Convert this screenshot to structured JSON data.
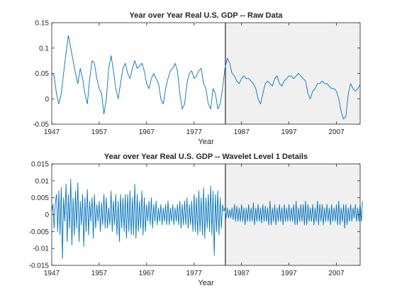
{
  "chart_data": [
    {
      "type": "line",
      "title": "Year over Year Real U.S. GDP -- Raw Data",
      "xlabel": "Year",
      "ylabel": "",
      "xlim": [
        1947,
        2012
      ],
      "ylim": [
        -0.05,
        0.15
      ],
      "xticks": [
        "1947",
        "1957",
        "1967",
        "1977",
        "1987",
        "1997",
        "2007"
      ],
      "yticks": [
        "-0.05",
        "0",
        "0.05",
        "0.1",
        "0.15"
      ],
      "shaded_region": [
        1983.6,
        2012
      ],
      "shade_color": "#f0f0f0",
      "line_color": "#0072bd",
      "series": [
        {
          "x": [
            1947,
            1947.5,
            1948,
            1948.5,
            1949,
            1949.5,
            1950,
            1950.5,
            1951,
            1951.5,
            1952,
            1952.5,
            1953,
            1953.5,
            1954,
            1954.5,
            1955,
            1955.5,
            1956,
            1956.5,
            1957,
            1957.5,
            1958,
            1958.5,
            1959,
            1959.5,
            1960,
            1960.5,
            1961,
            1961.5,
            1962,
            1962.5,
            1963,
            1963.5,
            1964,
            1964.5,
            1965,
            1965.5,
            1966,
            1966.5,
            1967,
            1967.5,
            1968,
            1968.5,
            1969,
            1969.5,
            1970,
            1970.5,
            1971,
            1971.5,
            1972,
            1972.5,
            1973,
            1973.5,
            1974,
            1974.5,
            1975,
            1975.5,
            1976,
            1976.5,
            1977,
            1977.5,
            1978,
            1978.5,
            1979,
            1979.5,
            1980,
            1980.5,
            1981,
            1981.5,
            1982,
            1982.5,
            1983,
            1983.5,
            1984,
            1984.5,
            1985,
            1985.5,
            1986,
            1986.5,
            1987,
            1987.5,
            1988,
            1988.5,
            1989,
            1989.5,
            1990,
            1990.5,
            1991,
            1991.5,
            1992,
            1992.5,
            1993,
            1993.5,
            1994,
            1994.5,
            1995,
            1995.5,
            1996,
            1996.5,
            1997,
            1997.5,
            1998,
            1998.5,
            1999,
            1999.5,
            2000,
            2000.5,
            2001,
            2001.5,
            2002,
            2002.5,
            2003,
            2003.5,
            2004,
            2004.5,
            2005,
            2005.5,
            2006,
            2006.5,
            2007,
            2007.5,
            2008,
            2008.5,
            2009,
            2009.5,
            2010,
            2010.5,
            2011,
            2011.5,
            2012
          ],
          "y": [
            0.05,
            0.045,
            0.01,
            -0.01,
            0.01,
            0.05,
            0.09,
            0.125,
            0.1,
            0.075,
            0.05,
            0.03,
            0.06,
            0.04,
            0.01,
            -0.01,
            0.04,
            0.075,
            0.07,
            0.04,
            0.02,
            0.01,
            -0.03,
            0.0,
            0.06,
            0.085,
            0.055,
            0.02,
            0.0,
            0.03,
            0.06,
            0.07,
            0.05,
            0.04,
            0.06,
            0.075,
            0.06,
            0.065,
            0.07,
            0.055,
            0.03,
            0.02,
            0.04,
            0.05,
            0.04,
            0.03,
            0.0,
            -0.01,
            0.02,
            0.04,
            0.055,
            0.06,
            0.07,
            0.055,
            0.01,
            -0.02,
            -0.01,
            0.03,
            0.05,
            0.055,
            0.04,
            0.045,
            0.055,
            0.06,
            0.03,
            0.02,
            -0.01,
            -0.02,
            0.02,
            0.01,
            -0.02,
            -0.01,
            0.02,
            0.06,
            0.08,
            0.07,
            0.05,
            0.045,
            0.035,
            0.03,
            0.04,
            0.045,
            0.04,
            0.04,
            0.035,
            0.03,
            0.02,
            0.0,
            -0.01,
            0.01,
            0.03,
            0.035,
            0.03,
            0.025,
            0.04,
            0.045,
            0.03,
            0.025,
            0.035,
            0.04,
            0.045,
            0.045,
            0.04,
            0.045,
            0.05,
            0.045,
            0.04,
            0.035,
            0.01,
            0.0,
            0.015,
            0.02,
            0.03,
            0.03,
            0.035,
            0.03,
            0.03,
            0.025,
            0.02,
            0.02,
            0.015,
            0.0,
            -0.025,
            -0.04,
            -0.035,
            0.01,
            0.03,
            0.02,
            0.015,
            0.02,
            0.028
          ]
        }
      ]
    },
    {
      "type": "line",
      "title": "Year over Year Real U.S. GDP -- Wavelet Level 1 Details",
      "xlabel": "Year",
      "ylabel": "",
      "xlim": [
        1947,
        2012
      ],
      "ylim": [
        -0.015,
        0.015
      ],
      "xticks": [
        "1947",
        "1957",
        "1967",
        "1977",
        "1987",
        "1997",
        "2007"
      ],
      "yticks": [
        "-0.015",
        "-0.01",
        "-0.005",
        "0",
        "0.005",
        "0.01",
        "0.015"
      ],
      "shaded_region": [
        1983.6,
        2012
      ],
      "shade_color": "#f0f0f0",
      "line_color": "#0072bd",
      "series": [
        {
          "x_start": 1947,
          "x_step": 0.25,
          "y": [
            0.001,
            0.003,
            -0.004,
            0.0035,
            0.006,
            -0.005,
            0.007,
            -0.006,
            0.008,
            -0.013,
            0.005,
            -0.002,
            0.009,
            -0.008,
            0.006,
            -0.004,
            0.0105,
            -0.009,
            0.005,
            -0.006,
            0.007,
            -0.004,
            0.0095,
            -0.008,
            0.004,
            -0.003,
            0.006,
            -0.0095,
            0.005,
            -0.005,
            0.0075,
            -0.006,
            0.004,
            -0.002,
            0.005,
            -0.007,
            0.006,
            -0.004,
            0.003,
            -0.002,
            0.004,
            -0.005,
            0.0035,
            -0.003,
            0.006,
            -0.004,
            0.005,
            -0.004,
            0.002,
            -0.003,
            0.007,
            -0.005,
            0.004,
            -0.003,
            0.006,
            -0.006,
            0.004,
            -0.008,
            0.006,
            -0.004,
            0.005,
            -0.005,
            0.006,
            -0.007,
            0.006,
            -0.005,
            0.007,
            -0.006,
            0.005,
            -0.006,
            0.009,
            -0.007,
            0.006,
            -0.005,
            0.004,
            -0.004,
            0.007,
            -0.006,
            0.005,
            -0.005,
            0.003,
            -0.002,
            0.004,
            -0.003,
            0.005,
            -0.004,
            0.003,
            -0.002,
            0.004,
            -0.003,
            0.002,
            -0.002,
            0.003,
            -0.003,
            0.002,
            -0.002,
            0.003,
            -0.003,
            0.004,
            -0.003,
            0.002,
            -0.002,
            0.003,
            -0.003,
            0.002,
            -0.002,
            0.003,
            -0.003,
            0.004,
            -0.004,
            0.003,
            -0.003,
            0.004,
            -0.003,
            0.005,
            -0.004,
            0.003,
            -0.003,
            0.004,
            -0.005,
            0.006,
            -0.005,
            0.005,
            -0.006,
            0.007,
            -0.005,
            0.005,
            -0.006,
            0.008,
            -0.007,
            0.005,
            -0.004,
            0.006,
            -0.005,
            0.0085,
            -0.006,
            0.007,
            -0.012,
            0.006,
            -0.005,
            0.007,
            -0.006,
            0.005,
            -0.004,
            0.003,
            0.001,
            0.002,
            -0.001,
            0.002,
            -0.001,
            0.0015,
            -0.001,
            0.002,
            -0.0015,
            0.003,
            -0.002,
            0.0025,
            -0.002,
            0.002,
            -0.002,
            0.003,
            -0.002,
            0.002,
            -0.003,
            0.002,
            -0.002,
            0.003,
            -0.002,
            0.002,
            -0.002,
            0.0035,
            -0.003,
            0.002,
            -0.002,
            0.003,
            -0.002,
            0.002,
            -0.0025,
            0.003,
            -0.002,
            0.0025,
            -0.002,
            0.002,
            -0.003,
            0.004,
            -0.003,
            0.002,
            -0.002,
            0.003,
            -0.003,
            0.002,
            -0.002,
            0.003,
            -0.002,
            0.002,
            -0.003,
            0.003,
            -0.002,
            0.002,
            -0.002,
            0.003,
            -0.002,
            0.002,
            -0.002,
            0.003,
            -0.003,
            0.004,
            -0.003,
            0.002,
            -0.002,
            0.003,
            -0.002,
            0.003,
            -0.003,
            0.004,
            -0.003,
            0.003,
            -0.002,
            0.002,
            -0.002,
            0.003,
            -0.003,
            0.002,
            -0.002,
            0.004,
            -0.003,
            0.003,
            -0.002,
            0.003,
            -0.003,
            0.002,
            -0.002,
            0.003,
            -0.002,
            0.002,
            -0.003,
            0.003,
            -0.002,
            0.002,
            -0.002,
            0.003,
            -0.003,
            0.004,
            -0.003,
            0.002,
            -0.002,
            0.003,
            -0.004,
            0.003,
            -0.003,
            0.002,
            -0.002,
            0.003,
            -0.002,
            0.002,
            -0.001,
            0.003,
            -0.002,
            0.002,
            -0.002,
            0.003,
            -0.002,
            0.004
          ]
        }
      ]
    }
  ]
}
